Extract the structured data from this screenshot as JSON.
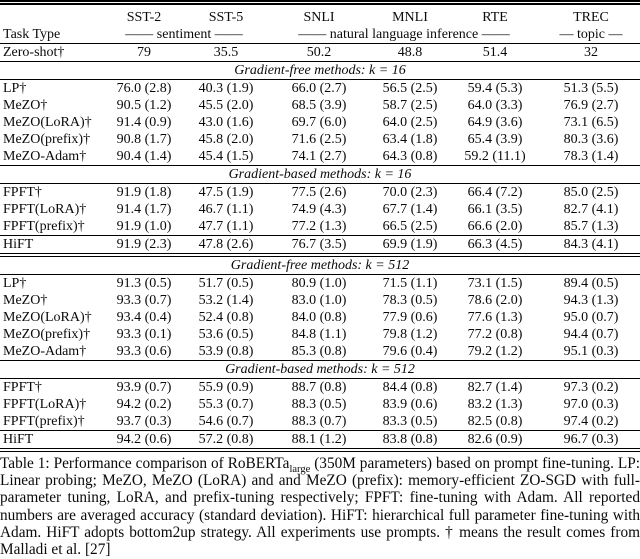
{
  "table": {
    "task_type_label": "Task Type",
    "zero_shot_label": "Zero-shot†",
    "columns": [
      "SST-2",
      "SST-5",
      "SNLI",
      "MNLI",
      "RTE",
      "TREC"
    ],
    "column_groups": [
      {
        "label": "—— sentiment ——",
        "span": 2
      },
      {
        "label": "—— natural language inference ——",
        "span": 3
      },
      {
        "label": "— topic —",
        "span": 1
      }
    ],
    "zero_shot": {
      "label": "Zero-shot†",
      "values": [
        "79",
        "35.5",
        "50.2",
        "48.8",
        "51.4",
        "32"
      ]
    },
    "sections": [
      {
        "title": "Gradient-free methods: k = 16",
        "after_rule": "single",
        "row_groups": [
          [
            {
              "label": "LP†",
              "values": [
                "76.0 (2.8)",
                "40.3 (1.9)",
                "66.0 (2.7)",
                "56.5 (2.5)",
                "59.4 (5.3)",
                "51.3 (5.5)"
              ]
            },
            {
              "label": "MeZO†",
              "values": [
                "90.5 (1.2)",
                "45.5 (2.0)",
                "68.5 (3.9)",
                "58.7 (2.5)",
                "64.0 (3.3)",
                "76.9 (2.7)"
              ]
            },
            {
              "label": "MeZO(LoRA)†",
              "values": [
                "91.4 (0.9)",
                "43.0 (1.6)",
                "69.7 (6.0)",
                "64.0 (2.5)",
                "64.9 (3.6)",
                "73.1 (6.5)"
              ]
            },
            {
              "label": "MeZO(prefix)†",
              "values": [
                "90.8 (1.7)",
                "45.8 (2.0)",
                "71.6 (2.5)",
                "63.4 (1.8)",
                "65.4 (3.9)",
                "80.3 (3.6)"
              ]
            },
            {
              "label": "MeZO-Adam†",
              "values": [
                "90.4 (1.4)",
                "45.4 (1.5)",
                "74.1 (2.7)",
                "64.3 (0.8)",
                "59.2 (11.1)",
                "78.3 (1.4)"
              ]
            }
          ]
        ]
      },
      {
        "title": "Gradient-based methods: k = 16",
        "after_rule": "double",
        "row_groups": [
          [
            {
              "label": "FPFT†",
              "values": [
                "91.9 (1.8)",
                "47.5 (1.9)",
                "77.5 (2.6)",
                "70.0 (2.3)",
                "66.4 (7.2)",
                "85.0 (2.5)"
              ]
            },
            {
              "label": "FPFT(LoRA)†",
              "values": [
                "91.4 (1.7)",
                "46.7 (1.1)",
                "74.9 (4.3)",
                "67.7 (1.4)",
                "66.1 (3.5)",
                "82.7 (4.1)"
              ]
            },
            {
              "label": "FPFT(prefix)†",
              "values": [
                "91.9 (1.0)",
                "47.7 (1.1)",
                "77.2 (1.3)",
                "66.5 (2.5)",
                "66.6 (2.0)",
                "85.7 (1.3)"
              ]
            }
          ],
          [
            {
              "label": "HiFT",
              "values": [
                "91.9 (2.3)",
                "47.8 (2.6)",
                "76.7 (3.5)",
                "69.9 (1.9)",
                "66.3 (4.5)",
                "84.3 (4.1)"
              ]
            }
          ]
        ]
      },
      {
        "title": "Gradient-free methods: k = 512",
        "after_rule": "single",
        "row_groups": [
          [
            {
              "label": "LP†",
              "values": [
                "91.3 (0.5)",
                "51.7 (0.5)",
                "80.9 (1.0)",
                "71.5 (1.1)",
                "73.1 (1.5)",
                "89.4 (0.5)"
              ]
            },
            {
              "label": "MeZO†",
              "values": [
                "93.3 (0.7)",
                "53.2 (1.4)",
                "83.0 (1.0)",
                "78.3 (0.5)",
                "78.6 (2.0)",
                "94.3 (1.3)"
              ]
            },
            {
              "label": "MeZO(LoRA)†",
              "values": [
                "93.4 (0.4)",
                "52.4 (0.8)",
                "84.0 (0.8)",
                "77.9 (0.6)",
                "77.6 (1.3)",
                "95.0 (0.7)"
              ]
            },
            {
              "label": "MeZO(prefix)†",
              "values": [
                "93.3 (0.1)",
                "53.6 (0.5)",
                "84.8 (1.1)",
                "79.8 (1.2)",
                "77.2 (0.8)",
                "94.4 (0.7)"
              ]
            },
            {
              "label": "MeZO-Adam†",
              "values": [
                "93.3 (0.6)",
                "53.9 (0.8)",
                "85.3 (0.8)",
                "79.6 (0.4)",
                "79.2 (1.2)",
                "95.1 (0.3)"
              ]
            }
          ]
        ]
      },
      {
        "title": "Gradient-based methods: k = 512",
        "after_rule": "none",
        "row_groups": [
          [
            {
              "label": "FPFT†",
              "values": [
                "93.9 (0.7)",
                "55.9 (0.9)",
                "88.7 (0.8)",
                "84.4 (0.8)",
                "82.7 (1.4)",
                "97.3 (0.2)"
              ]
            },
            {
              "label": "FPFT(LoRA)†",
              "values": [
                "94.2 (0.2)",
                "55.3 (0.7)",
                "88.3 (0.5)",
                "83.9 (0.6)",
                "83.2 (1.3)",
                "97.0 (0.3)"
              ]
            },
            {
              "label": "FPFT(prefix)†",
              "values": [
                "93.7 (0.3)",
                "54.6 (0.7)",
                "88.3 (0.7)",
                "83.3 (0.5)",
                "82.5 (0.8)",
                "97.4 (0.2)"
              ]
            }
          ],
          [
            {
              "label": "HiFT",
              "values": [
                "94.2 (0.6)",
                "57.2 (0.8)",
                "88.1 (1.2)",
                "83.8 (0.8)",
                "82.6 (0.9)",
                "96.7 (0.3)"
              ]
            }
          ]
        ]
      }
    ]
  },
  "caption": {
    "part1": "Table 1: Performance comparison of RoBERTa",
    "subscript": "large",
    "part2": " (350M parameters) based on prompt fine-tuning. LP: Linear probing; MeZO, MeZO (LoRA) and and MeZO (prefix): memory-efficient ZO-SGD with full-parameter tuning, LoRA, and prefix-tuning respectively; FPFT: fine-tuning with Adam. All reported numbers are averaged accuracy (standard deviation). HiFT: hierarchical full parameter fine-tuning with Adam. HiFT adopts bottom2up strategy. All experiments use prompts. † means the result comes from Malladi et al. [27]"
  }
}
